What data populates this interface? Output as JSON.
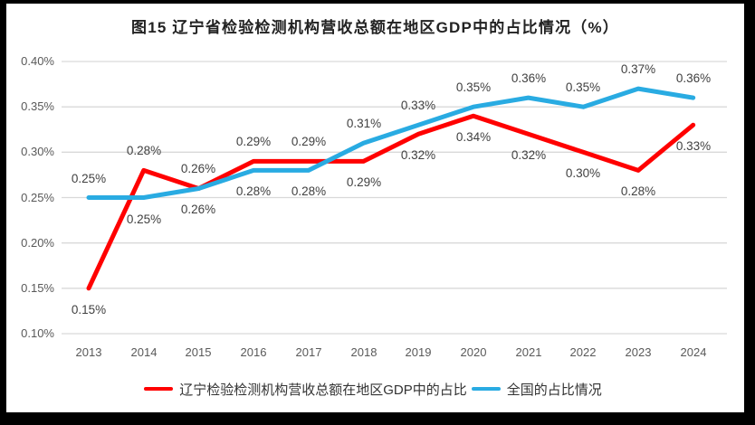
{
  "frame": {
    "border_color": "#000000",
    "chart_background": "#ffffff"
  },
  "chart_data": {
    "type": "line",
    "title": "图15 辽宁省检验检测机构营收总额在地区GDP中的占比情况（%）",
    "categories": [
      "2013",
      "2014",
      "2015",
      "2016",
      "2017",
      "2018",
      "2019",
      "2020",
      "2021",
      "2022",
      "2023",
      "2024"
    ],
    "series": [
      {
        "name": "辽宁检验检测机构营收总额在地区GDP中的占比",
        "color": "#FF0000",
        "values": [
          0.15,
          0.28,
          0.26,
          0.29,
          0.29,
          0.29,
          0.32,
          0.34,
          0.32,
          0.3,
          0.28,
          0.33
        ],
        "labels": [
          "0.15%",
          "0.28%",
          "0.26%",
          "0.29%",
          "0.29%",
          "0.29%",
          "0.32%",
          "0.34%",
          "0.32%",
          "0.30%",
          "0.28%",
          "0.33%"
        ]
      },
      {
        "name": "全国的占比情况",
        "color": "#29ABE2",
        "values": [
          0.25,
          0.25,
          0.26,
          0.28,
          0.28,
          0.31,
          0.33,
          0.35,
          0.36,
          0.35,
          0.37,
          0.36
        ],
        "labels": [
          "0.25%",
          "0.25%",
          "0.26%",
          "0.28%",
          "0.28%",
          "0.31%",
          "0.33%",
          "0.35%",
          "0.36%",
          "0.35%",
          "0.37%",
          "0.36%"
        ]
      }
    ],
    "xlabel": "",
    "ylabel": "",
    "ylim": [
      0.1,
      0.4
    ],
    "y_step": 0.05,
    "y_ticks": [
      "0.40%",
      "0.35%",
      "0.30%",
      "0.25%",
      "0.20%",
      "0.15%",
      "0.10%"
    ],
    "grid": "horizontal",
    "gridline_color": "#d9d9d9",
    "axis_text_color": "#595959",
    "data_label_color": "#404040",
    "legend_position": "bottom",
    "data_labels_visible": true
  }
}
